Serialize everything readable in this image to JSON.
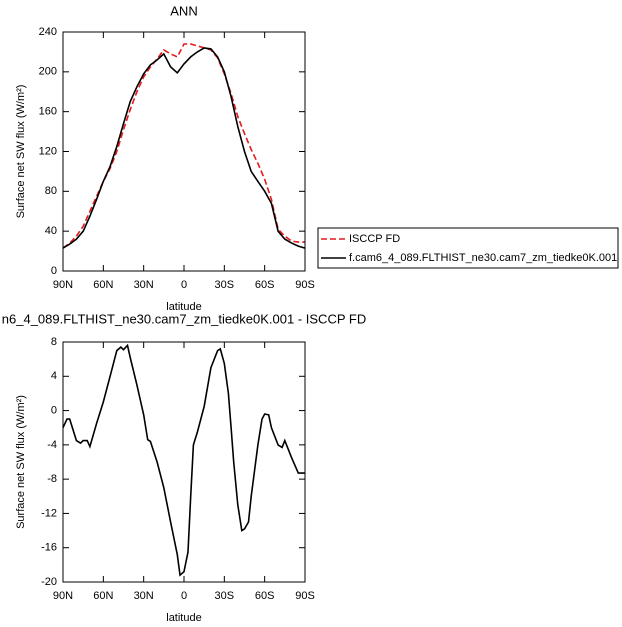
{
  "chart_data": [
    {
      "type": "line",
      "title": "ANN",
      "x_label": "latitude",
      "y_label": "Surface net SW flux (W/m²)",
      "x": [
        90,
        85,
        80,
        75,
        70,
        65,
        60,
        55,
        50,
        45,
        40,
        35,
        30,
        25,
        20,
        15,
        10,
        5,
        0,
        -5,
        -10,
        -15,
        -20,
        -25,
        -30,
        -35,
        -40,
        -45,
        -50,
        -55,
        -60,
        -65,
        -70,
        -75,
        -80,
        -85,
        -90
      ],
      "series": [
        {
          "name": "ISCCP FD",
          "color": "#e41a1c",
          "linestyle": "dashed",
          "values": [
            23,
            28,
            35,
            45,
            60,
            75,
            90,
            103,
            120,
            142,
            162,
            180,
            195,
            205,
            213,
            222,
            218,
            215,
            228,
            228,
            226,
            224,
            222,
            214,
            198,
            178,
            155,
            138,
            122,
            108,
            92,
            72,
            42,
            35,
            30,
            29,
            29
          ]
        },
        {
          "name": "f.cam6_4_089.FLTHIST_ne30.cam7_zm_tiedke0K.001",
          "color": "#000000",
          "linestyle": "solid",
          "values": [
            23,
            27,
            32,
            40,
            55,
            72,
            90,
            105,
            125,
            148,
            170,
            185,
            198,
            207,
            212,
            218,
            205,
            199,
            208,
            215,
            220,
            224,
            223,
            215,
            200,
            175,
            145,
            120,
            100,
            90,
            80,
            68,
            40,
            32,
            28,
            25,
            23
          ]
        }
      ],
      "xlim": [
        90,
        -90
      ],
      "xticks": [
        {
          "value": 90,
          "label": "90N"
        },
        {
          "value": 60,
          "label": "60N"
        },
        {
          "value": 30,
          "label": "30N"
        },
        0,
        {
          "value": -30,
          "label": "30S"
        },
        {
          "value": -60,
          "label": "60S"
        },
        {
          "value": -90,
          "label": "90S"
        }
      ],
      "ylim": [
        0,
        240
      ],
      "yticks": [
        0,
        40,
        80,
        120,
        160,
        200,
        240
      ],
      "legend": "right"
    },
    {
      "type": "line",
      "title": "n6_4_089.FLTHIST_ne30.cam7_zm_tiedke0K.001 - ISCCP FD",
      "x_label": "latitude",
      "y_label": "Surface net SW flux (W/m²)",
      "x": [
        90,
        87,
        85,
        80,
        77,
        75,
        72,
        70,
        65,
        60,
        55,
        50,
        47,
        45,
        42,
        40,
        35,
        30,
        27,
        25,
        20,
        15,
        10,
        5,
        3,
        0,
        -3,
        -5,
        -7,
        -10,
        -15,
        -20,
        -25,
        -27,
        -30,
        -33,
        -35,
        -37,
        -40,
        -43,
        -45,
        -48,
        -50,
        -55,
        -58,
        -60,
        -63,
        -65,
        -70,
        -73,
        -75,
        -80,
        -85,
        -90
      ],
      "values": [
        -2,
        -1,
        -1,
        -3.5,
        -3.8,
        -3.5,
        -3.5,
        -4.2,
        -1.5,
        1,
        4,
        7,
        7.4,
        7.1,
        7.6,
        6.2,
        3,
        -0.5,
        -3.4,
        -3.6,
        -6,
        -9,
        -13,
        -16.8,
        -19.2,
        -18.8,
        -16.5,
        -10,
        -4,
        -2.5,
        0.5,
        5,
        7,
        7.2,
        5.5,
        2,
        -2,
        -6,
        -11,
        -14,
        -13.8,
        -13,
        -10,
        -4,
        -1,
        -0.4,
        -0.5,
        -2,
        -4,
        -4.3,
        -3.5,
        -5.5,
        -7.3,
        -7.3
      ],
      "color": "#000000",
      "xlim": [
        90,
        -90
      ],
      "xticks": [
        {
          "value": 90,
          "label": "90N"
        },
        {
          "value": 60,
          "label": "60N"
        },
        {
          "value": 30,
          "label": "30N"
        },
        0,
        {
          "value": -30,
          "label": "30S"
        },
        {
          "value": -60,
          "label": "60S"
        },
        {
          "value": -90,
          "label": "90S"
        }
      ],
      "ylim": [
        -20,
        8
      ],
      "yticks": [
        -20,
        -16,
        -12,
        -8,
        -4,
        0,
        4,
        8
      ]
    }
  ]
}
